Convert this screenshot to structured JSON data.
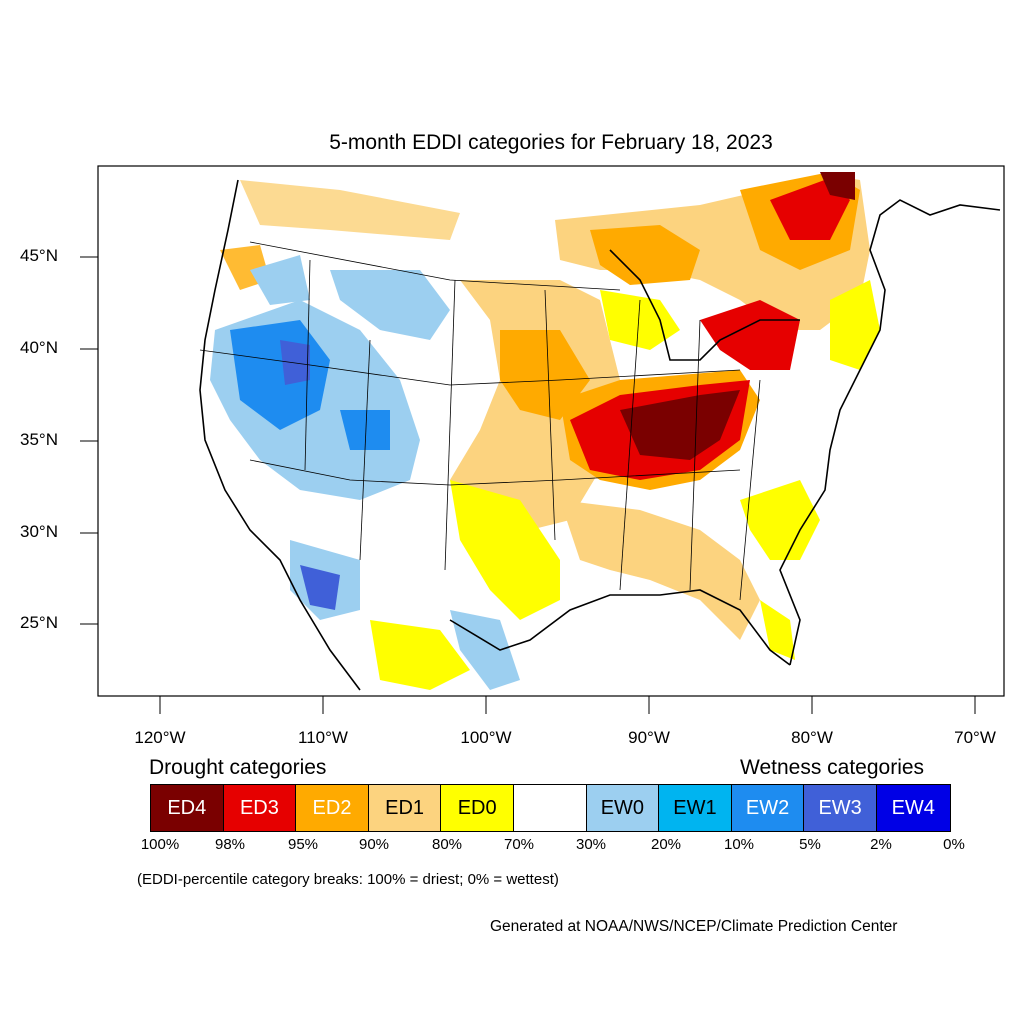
{
  "title": "5-month EDDI categories for February 18, 2023",
  "lat_labels": [
    "45°N",
    "40°N",
    "35°N",
    "30°N",
    "25°N"
  ],
  "lon_labels": [
    "120°W",
    "110°W",
    "100°W",
    "90°W",
    "80°W",
    "70°W"
  ],
  "drought_label": "Drought categories",
  "wetness_label": "Wetness categories",
  "categories": [
    {
      "code": "ED4",
      "color": "#7a0000",
      "text_color": "#ffffff"
    },
    {
      "code": "ED3",
      "color": "#e60000",
      "text_color": "#ffffff"
    },
    {
      "code": "ED2",
      "color": "#ffaa00",
      "text_color": "#ffffff"
    },
    {
      "code": "ED1",
      "color": "#fcd37f",
      "text_color": "#000000"
    },
    {
      "code": "ED0",
      "color": "#ffff00",
      "text_color": "#000000"
    },
    {
      "code": "",
      "color": "#ffffff",
      "text_color": "#000000"
    },
    {
      "code": "EW0",
      "color": "#9ccff0",
      "text_color": "#000000"
    },
    {
      "code": "EW1",
      "color": "#00b4f0",
      "text_color": "#000000"
    },
    {
      "code": "EW2",
      "color": "#1e8cf0",
      "text_color": "#ffffff"
    },
    {
      "code": "EW3",
      "color": "#4060d8",
      "text_color": "#ffffff"
    },
    {
      "code": "EW4",
      "color": "#0000e6",
      "text_color": "#ffffff"
    }
  ],
  "percent_breaks": [
    "100%",
    "98%",
    "95%",
    "90%",
    "80%",
    "70%",
    "30%",
    "20%",
    "10%",
    "5%",
    "2%",
    "0%"
  ],
  "note": "(EDDI-percentile category breaks: 100% = driest; 0% = wettest)",
  "credit": "Generated at NOAA/NWS/NCEP/Climate Prediction Center"
}
